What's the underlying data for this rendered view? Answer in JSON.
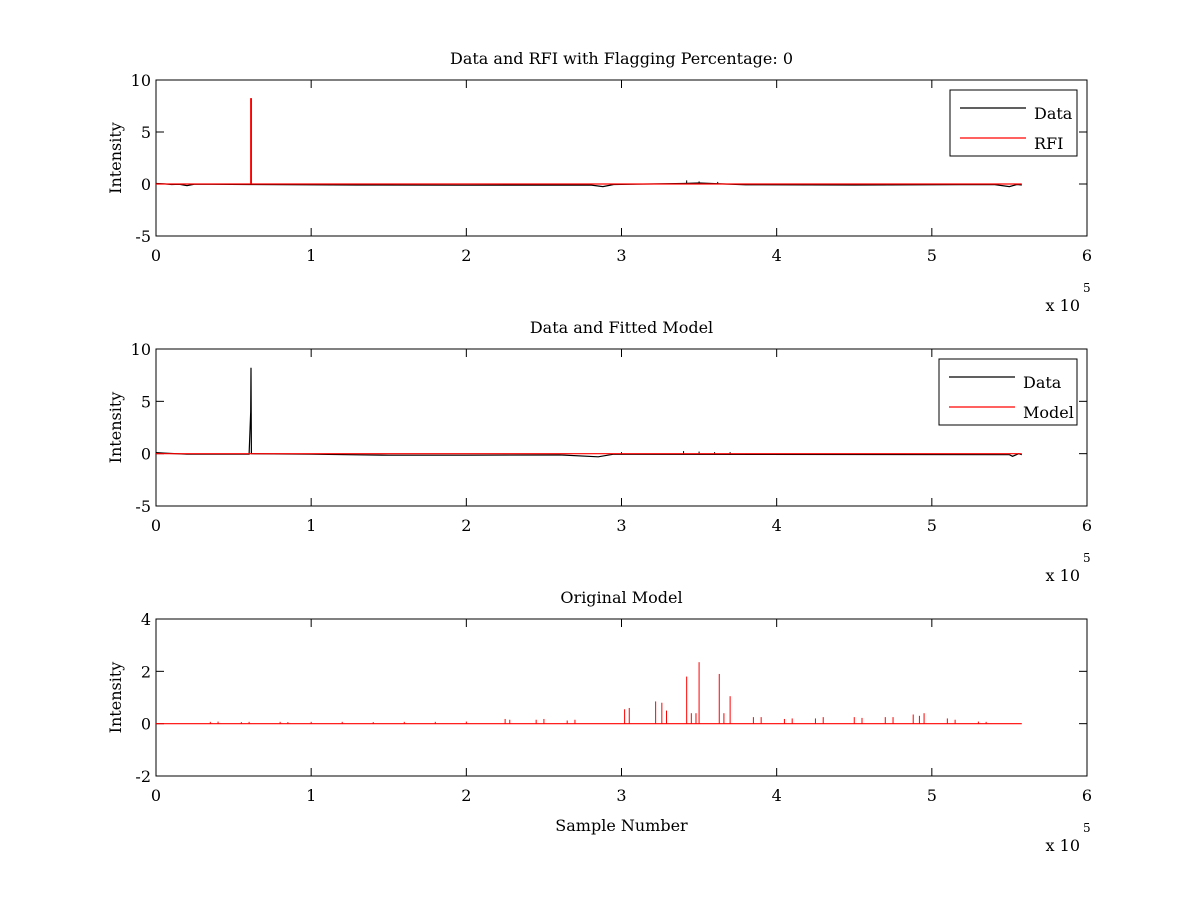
{
  "figure": {
    "background": "#ffffff"
  },
  "chart_data": [
    {
      "type": "line",
      "title": "Data and RFI with Flagging Percentage: 0",
      "xlabel": "",
      "ylabel": "Intensity",
      "xlim": [
        0,
        6
      ],
      "ylim": [
        -5,
        10
      ],
      "x_ticks": [
        "0",
        "1",
        "2",
        "3",
        "4",
        "5",
        "6"
      ],
      "y_ticks": [
        "-5",
        "0",
        "5",
        "10"
      ],
      "x_exponent_label": "x 10",
      "x_exponent_power": "5",
      "legend": {
        "position": "top-right",
        "entries": [
          "Data",
          "RFI"
        ]
      },
      "series": [
        {
          "name": "Data",
          "color": "#000000",
          "points": [
            [
              0,
              0.05
            ],
            [
              0.05,
              0.02
            ],
            [
              0.1,
              -0.05
            ],
            [
              0.15,
              -0.03
            ],
            [
              0.2,
              -0.15
            ],
            [
              0.25,
              -0.02
            ],
            [
              0.6,
              -0.05
            ],
            [
              1.3,
              -0.1
            ],
            [
              2.0,
              -0.12
            ],
            [
              2.8,
              -0.1
            ],
            [
              2.88,
              -0.25
            ],
            [
              2.95,
              -0.05
            ],
            [
              3.4,
              0.05
            ],
            [
              3.5,
              0.1
            ],
            [
              3.8,
              -0.08
            ],
            [
              4.5,
              -0.1
            ],
            [
              5.4,
              -0.05
            ],
            [
              5.5,
              -0.25
            ],
            [
              5.55,
              -0.05
            ],
            [
              5.58,
              -0.1
            ]
          ],
          "spikes": [
            [
              3.42,
              0.35
            ],
            [
              3.5,
              0.25
            ],
            [
              3.62,
              0.2
            ]
          ]
        },
        {
          "name": "RFI",
          "color": "#ff0000",
          "points": [
            [
              0,
              0
            ],
            [
              0.61,
              0
            ],
            [
              0.61,
              8.2
            ],
            [
              0.615,
              8.2
            ],
            [
              0.615,
              0
            ],
            [
              5.58,
              0
            ]
          ],
          "spikes": []
        }
      ]
    },
    {
      "type": "line",
      "title": "Data and Fitted Model",
      "xlabel": "",
      "ylabel": "Intensity",
      "xlim": [
        0,
        6
      ],
      "ylim": [
        -5,
        10
      ],
      "x_ticks": [
        "0",
        "1",
        "2",
        "3",
        "4",
        "5",
        "6"
      ],
      "y_ticks": [
        "-5",
        "0",
        "5",
        "10"
      ],
      "x_exponent_label": "x 10",
      "x_exponent_power": "5",
      "legend": {
        "position": "top-right",
        "entries": [
          "Data",
          "Model"
        ]
      },
      "series": [
        {
          "name": "Data",
          "color": "#000000",
          "points": [
            [
              0,
              0.1
            ],
            [
              0.05,
              0.05
            ],
            [
              0.2,
              -0.05
            ],
            [
              0.6,
              -0.05
            ],
            [
              0.61,
              4.0
            ],
            [
              0.612,
              8.2
            ],
            [
              0.615,
              0.0
            ],
            [
              1.0,
              -0.05
            ],
            [
              1.5,
              -0.15
            ],
            [
              2.0,
              -0.15
            ],
            [
              2.6,
              -0.12
            ],
            [
              2.85,
              -0.3
            ],
            [
              2.95,
              -0.05
            ],
            [
              5.5,
              -0.1
            ],
            [
              5.52,
              -0.25
            ],
            [
              5.56,
              0.0
            ],
            [
              5.58,
              -0.1
            ]
          ],
          "spikes": [
            [
              3.0,
              0.15
            ],
            [
              3.4,
              0.25
            ],
            [
              3.5,
              0.2
            ],
            [
              3.6,
              0.15
            ],
            [
              3.7,
              0.15
            ]
          ]
        },
        {
          "name": "Model",
          "color": "#ff0000",
          "points": [
            [
              0,
              0
            ],
            [
              5.58,
              0
            ]
          ],
          "spikes": []
        }
      ]
    },
    {
      "type": "line",
      "title": "Original Model",
      "xlabel": "Sample Number",
      "ylabel": "Intensity",
      "xlim": [
        0,
        6
      ],
      "ylim": [
        -2,
        4
      ],
      "x_ticks": [
        "0",
        "1",
        "2",
        "3",
        "4",
        "5",
        "6"
      ],
      "y_ticks": [
        "-2",
        "0",
        "2",
        "4"
      ],
      "x_exponent_label": "x 10",
      "x_exponent_power": "5",
      "legend": null,
      "series": [
        {
          "name": "Model",
          "color": "#ff0000",
          "points": [
            [
              0,
              0
            ],
            [
              5.58,
              0
            ]
          ],
          "spikes": [
            [
              0.35,
              0.07
            ],
            [
              0.4,
              0.08
            ],
            [
              0.55,
              0.06
            ],
            [
              0.6,
              0.07
            ],
            [
              0.8,
              0.07
            ],
            [
              0.85,
              0.06
            ],
            [
              1.0,
              0.07
            ],
            [
              1.2,
              0.07
            ],
            [
              1.4,
              0.06
            ],
            [
              1.6,
              0.07
            ],
            [
              1.8,
              0.07
            ],
            [
              2.0,
              0.08
            ],
            [
              2.25,
              0.18
            ],
            [
              2.28,
              0.15
            ],
            [
              2.45,
              0.15
            ],
            [
              2.5,
              0.18
            ],
            [
              2.65,
              0.12
            ],
            [
              2.7,
              0.15
            ],
            [
              3.02,
              0.55
            ],
            [
              3.05,
              0.6
            ],
            [
              3.22,
              0.85
            ],
            [
              3.26,
              0.8
            ],
            [
              3.29,
              0.5
            ],
            [
              3.42,
              1.8
            ],
            [
              3.45,
              0.4
            ],
            [
              3.48,
              0.4
            ],
            [
              3.5,
              2.35
            ],
            [
              3.63,
              1.9
            ],
            [
              3.66,
              0.4
            ],
            [
              3.7,
              1.05
            ],
            [
              3.85,
              0.25
            ],
            [
              3.9,
              0.25
            ],
            [
              4.05,
              0.18
            ],
            [
              4.1,
              0.2
            ],
            [
              4.25,
              0.2
            ],
            [
              4.3,
              0.25
            ],
            [
              4.5,
              0.25
            ],
            [
              4.55,
              0.22
            ],
            [
              4.7,
              0.25
            ],
            [
              4.75,
              0.25
            ],
            [
              4.88,
              0.35
            ],
            [
              4.92,
              0.3
            ],
            [
              4.95,
              0.4
            ],
            [
              5.1,
              0.2
            ],
            [
              5.15,
              0.15
            ],
            [
              5.3,
              0.08
            ],
            [
              5.35,
              0.07
            ]
          ]
        }
      ]
    }
  ]
}
